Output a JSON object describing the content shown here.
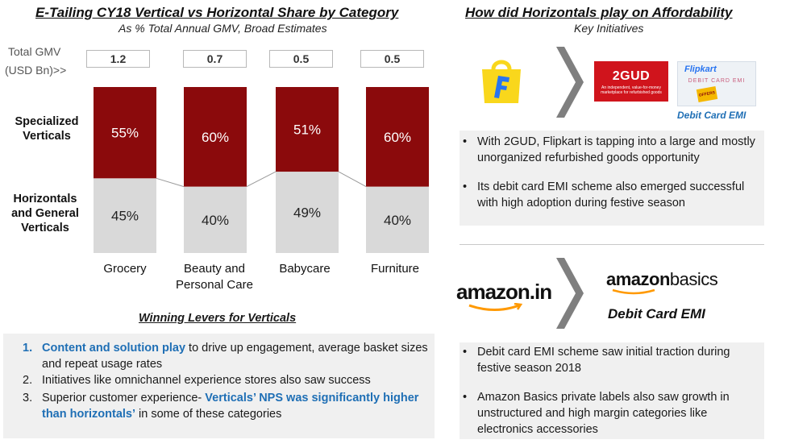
{
  "left_title": "E-Tailing CY18 Vertical vs Horizontal Share by Category",
  "left_subtitle": "As % Total Annual GMV, Broad Estimates",
  "gmv_label_1": "Total GMV",
  "gmv_label_2": "(USD Bn)>>",
  "gmv_values": [
    "1.2",
    "0.7",
    "0.5",
    "0.5"
  ],
  "row_labels": {
    "top": "Specialized Verticals",
    "bottom": "Horizontals and General Verticals"
  },
  "chart_data": {
    "type": "bar",
    "stacked": true,
    "categories": [
      "Grocery",
      "Beauty and Personal Care",
      "Babycare",
      "Furniture"
    ],
    "series": [
      {
        "name": "Specialized Verticals",
        "values": [
          55,
          60,
          51,
          60
        ],
        "labels": [
          "55%",
          "60%",
          "51%",
          "60%"
        ],
        "color": "#8b0a0c"
      },
      {
        "name": "Horizontals and General Verticals",
        "values": [
          45,
          40,
          49,
          40
        ],
        "labels": [
          "45%",
          "40%",
          "49%",
          "40%"
        ],
        "color": "#d9d9d9"
      }
    ],
    "ylim": [
      0,
      100
    ],
    "legend": "left"
  },
  "cat_display": [
    [
      "Grocery"
    ],
    [
      "Beauty and",
      "Personal Care"
    ],
    [
      "Babycare"
    ],
    [
      "Furniture"
    ]
  ],
  "levers": {
    "title": "Winning  Levers  for  Verticals",
    "items": [
      {
        "num": "1.",
        "highlight": "Content and solution  play",
        "text": " to drive up engagement,  average basket sizes and repeat usage rates"
      },
      {
        "num": "2.",
        "text": "Initiatives like omnichannel experience stores also saw success"
      },
      {
        "num": "3.",
        "pre": "Superior customer experience- ",
        "highlight": "Verticals’  NPS was significantly  higher than horizontals’",
        "text": "  in some of these categories"
      }
    ]
  },
  "right_title": "How did Horizontals play on Affordability",
  "right_subtitle": "Key Initiatives",
  "flipkart": {
    "logo_2gud": "2GUD",
    "logo_2gud_tagline": "An independent, value-for-money marketplace for refurbished goods",
    "card_brand": "Flipkart",
    "card_text": "DEBIT CARD EMI",
    "card_badge": "OFFERS",
    "caption": "Debit Card EMI",
    "bullets": [
      "With 2GUD, Flipkart is tapping into a large and mostly unorganized refurbished goods opportunity",
      "Its debit card EMI scheme also emerged successful with high adoption during festive season"
    ]
  },
  "amazon": {
    "logo_in": "amazon.in",
    "logo_basics_1": "amazon",
    "logo_basics_2": "basics",
    "caption": "Debit Card EMI",
    "bullets": [
      "Debit card EMI scheme saw initial traction during festive season 2018",
      "Amazon Basics private labels also saw growth in unstructured  and high margin categories like electronics accessories"
    ]
  },
  "colors": {
    "maroon": "#8b0a0c",
    "grey": "#d9d9d9",
    "blue": "#1f6fb5",
    "flipkart_yellow": "#f9d71c",
    "flipkart_blue": "#2874f0",
    "gud_red": "#d0141c",
    "amazon_orange": "#ff9900"
  },
  "icons": [
    "flipkart-bag-icon",
    "chevron-arrow-icon",
    "amazon-smile-icon"
  ]
}
